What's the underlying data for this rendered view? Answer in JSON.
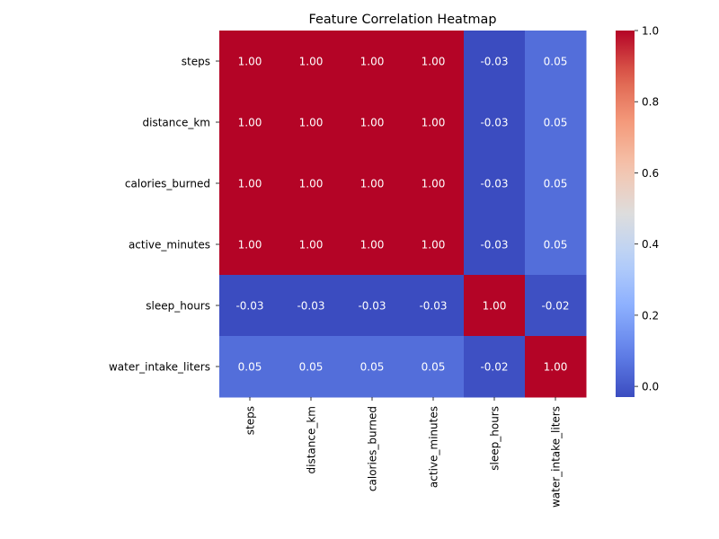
{
  "chart_data": {
    "type": "heatmap",
    "title": "Feature Correlation Heatmap",
    "rows": [
      "steps",
      "distance_km",
      "calories_burned",
      "active_minutes",
      "sleep_hours",
      "water_intake_liters"
    ],
    "columns": [
      "steps",
      "distance_km",
      "calories_burned",
      "active_minutes",
      "sleep_hours",
      "water_intake_liters"
    ],
    "values": [
      [
        1.0,
        1.0,
        1.0,
        1.0,
        -0.03,
        0.05
      ],
      [
        1.0,
        1.0,
        1.0,
        1.0,
        -0.03,
        0.05
      ],
      [
        1.0,
        1.0,
        1.0,
        1.0,
        -0.03,
        0.05
      ],
      [
        1.0,
        1.0,
        1.0,
        1.0,
        -0.03,
        0.05
      ],
      [
        -0.03,
        -0.03,
        -0.03,
        -0.03,
        1.0,
        -0.02
      ],
      [
        0.05,
        0.05,
        0.05,
        0.05,
        -0.02,
        1.0
      ]
    ],
    "cell_labels": [
      [
        "1.00",
        "1.00",
        "1.00",
        "1.00",
        "-0.03",
        "0.05"
      ],
      [
        "1.00",
        "1.00",
        "1.00",
        "1.00",
        "-0.03",
        "0.05"
      ],
      [
        "1.00",
        "1.00",
        "1.00",
        "1.00",
        "-0.03",
        "0.05"
      ],
      [
        "1.00",
        "1.00",
        "1.00",
        "1.00",
        "-0.03",
        "0.05"
      ],
      [
        "-0.03",
        "-0.03",
        "-0.03",
        "-0.03",
        "1.00",
        "-0.02"
      ],
      [
        "0.05",
        "0.05",
        "0.05",
        "0.05",
        "-0.02",
        "1.00"
      ]
    ],
    "colormap": "coolwarm",
    "color_range": [
      -0.03,
      1.0
    ],
    "colorbar": {
      "ticks": [
        0.0,
        0.2,
        0.4,
        0.6,
        0.8,
        1.0
      ],
      "tick_labels": [
        "0.0",
        "0.2",
        "0.4",
        "0.6",
        "0.8",
        "1.0"
      ]
    },
    "grid": false,
    "legend": "colorbar-right"
  }
}
